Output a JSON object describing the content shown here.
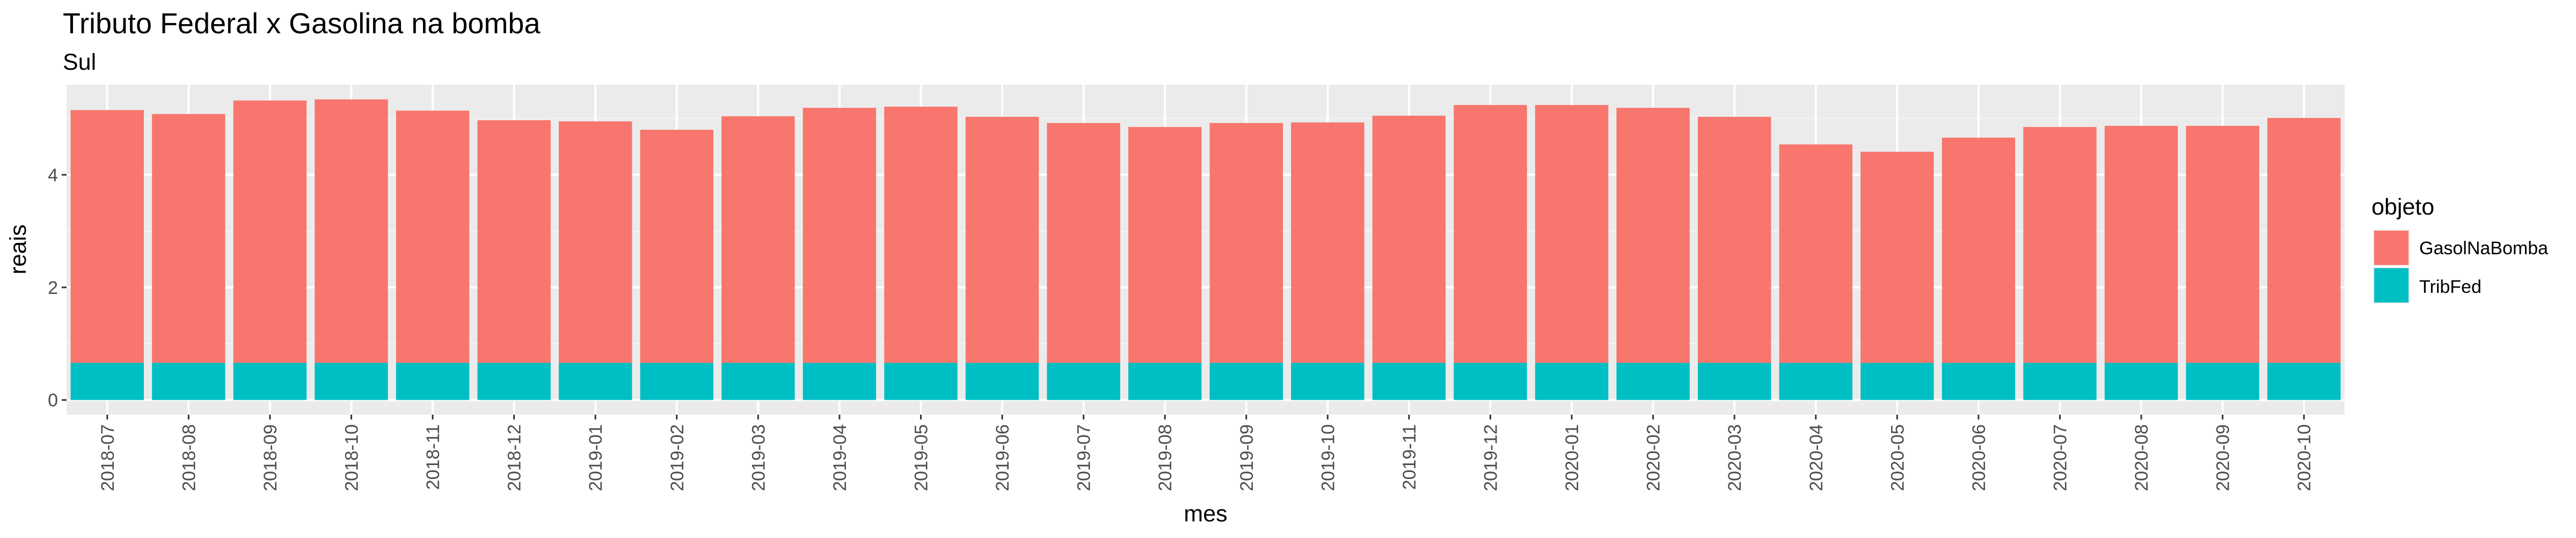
{
  "chart_data": {
    "type": "bar",
    "stacked": true,
    "title": "Tributo Federal x Gasolina na bomba",
    "subtitle": "Sul",
    "xlabel": "mes",
    "ylabel": "reais",
    "ylim": [
      -0.26,
      5.6
    ],
    "yticks": [
      0,
      2,
      4
    ],
    "grid": true,
    "legend": {
      "title": "objeto",
      "placement": "right",
      "entries": [
        {
          "name": "GasolNaBomba",
          "color": "#F8766D"
        },
        {
          "name": "TribFed",
          "color": "#00BFC4"
        }
      ]
    },
    "categories": [
      "2018-07",
      "2018-08",
      "2018-09",
      "2018-10",
      "2018-11",
      "2018-12",
      "2019-01",
      "2019-02",
      "2019-03",
      "2019-04",
      "2019-05",
      "2019-06",
      "2019-07",
      "2019-08",
      "2019-09",
      "2019-10",
      "2019-11",
      "2019-12",
      "2020-01",
      "2020-02",
      "2020-03",
      "2020-04",
      "2020-05",
      "2020-06",
      "2020-07",
      "2020-08",
      "2020-09",
      "2020-10"
    ],
    "series": [
      {
        "name": "TribFed",
        "color": "#00BFC4",
        "values": [
          0.66,
          0.66,
          0.66,
          0.66,
          0.66,
          0.66,
          0.66,
          0.66,
          0.66,
          0.66,
          0.66,
          0.66,
          0.66,
          0.66,
          0.66,
          0.66,
          0.66,
          0.66,
          0.66,
          0.66,
          0.66,
          0.66,
          0.66,
          0.66,
          0.66,
          0.66,
          0.66,
          0.66
        ]
      },
      {
        "name": "GasolNaBomba",
        "color": "#F8766D",
        "values": [
          4.49,
          4.42,
          4.66,
          4.68,
          4.48,
          4.31,
          4.29,
          4.14,
          4.38,
          4.53,
          4.55,
          4.37,
          4.26,
          4.19,
          4.26,
          4.27,
          4.39,
          4.58,
          4.58,
          4.53,
          4.37,
          3.88,
          3.75,
          4.0,
          4.19,
          4.21,
          4.21,
          4.35
        ]
      }
    ]
  }
}
